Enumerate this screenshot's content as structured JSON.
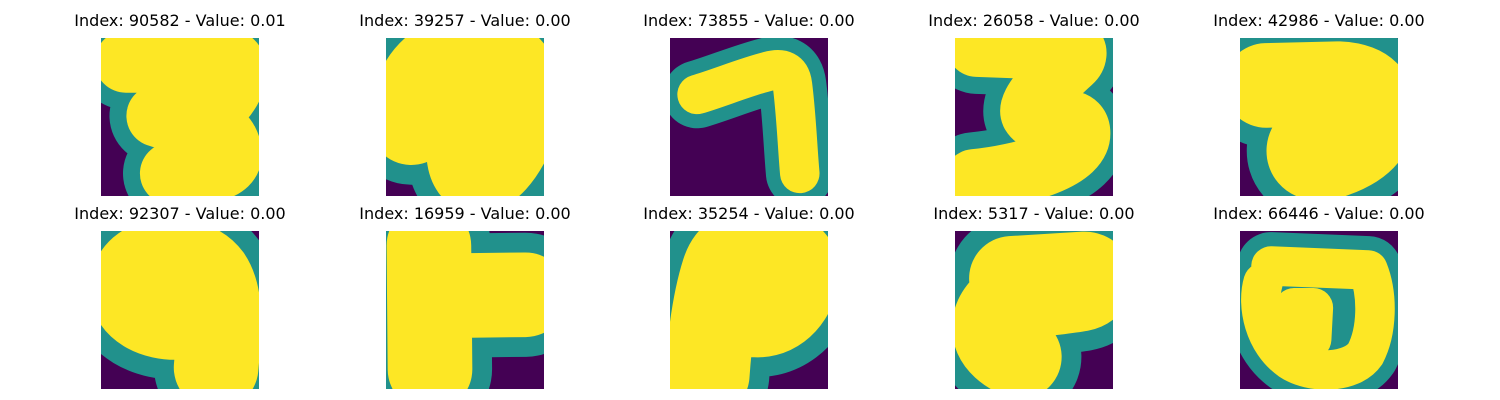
{
  "panels": [
    {
      "title": "Index: 90582 - Value: 0.01",
      "glyph": "three-loop-icon"
    },
    {
      "title": "Index: 39257 - Value: 0.00",
      "glyph": "loop-swirl-icon"
    },
    {
      "title": "Index: 73855 - Value: 0.00",
      "glyph": "seven-like-icon"
    },
    {
      "title": "Index: 26058 - Value: 0.00",
      "glyph": "three-zigzag-icon"
    },
    {
      "title": "Index: 42986 - Value: 0.00",
      "glyph": "hook-stroke-icon"
    },
    {
      "title": "Index: 92307 - Value: 0.00",
      "glyph": "curl-stroke-icon"
    },
    {
      "title": "Index: 16959 - Value: 0.00",
      "glyph": "t-shaped-icon"
    },
    {
      "title": "Index: 35254 - Value: 0.00",
      "glyph": "wave-stroke-icon"
    },
    {
      "title": "Index: 5317 - Value: 0.00",
      "glyph": "boot-stroke-icon"
    },
    {
      "title": "Index: 66446 - Value: 0.00",
      "glyph": "loop-box-icon"
    }
  ],
  "colors": {
    "background": "#440154",
    "edge": "#21918c",
    "stroke": "#fde725",
    "page": "#ffffff",
    "text": "#000000"
  }
}
